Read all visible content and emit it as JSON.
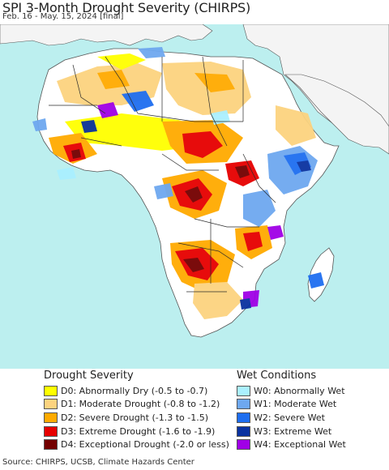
{
  "title": "SPI 3-Month Drought Severity (CHIRPS)",
  "subtitle": "Feb. 16 - May. 15, 2024 [final]",
  "source": "Source: CHIRPS, UCSB, Climate Hazards Center",
  "colors": {
    "ocean": "#bcefef",
    "land_outside": "#f4f4f4",
    "land_normal": "#ffffff",
    "border": "#2a2a2a",
    "coast": "#555555"
  },
  "legend": {
    "drought": {
      "title": "Drought Severity",
      "items": [
        {
          "label": "D0: Abnormally Dry (-0.5 to -0.7)",
          "color": "#ffff00"
        },
        {
          "label": "D1: Moderate Drought (-0.8 to -1.2)",
          "color": "#fcd37f"
        },
        {
          "label": "D2: Severe Drought (-1.3 to -1.5)",
          "color": "#ffaa00"
        },
        {
          "label": "D3: Extreme Drought (-1.6 to -1.9)",
          "color": "#e60000"
        },
        {
          "label": "D4: Exceptional Drought (-2.0 or less)",
          "color": "#730000"
        }
      ]
    },
    "wet": {
      "title": "Wet Conditions",
      "items": [
        {
          "label": "W0: Abnormally Wet",
          "color": "#aaf0ff"
        },
        {
          "label": "W1: Moderate Wet",
          "color": "#6ea8f0"
        },
        {
          "label": "W2: Severe Wet",
          "color": "#1e6ef0"
        },
        {
          "label": "W3: Extreme Wet",
          "color": "#0a32a0"
        },
        {
          "label": "W4: Exceptional Wet",
          "color": "#a000e6"
        }
      ]
    }
  }
}
